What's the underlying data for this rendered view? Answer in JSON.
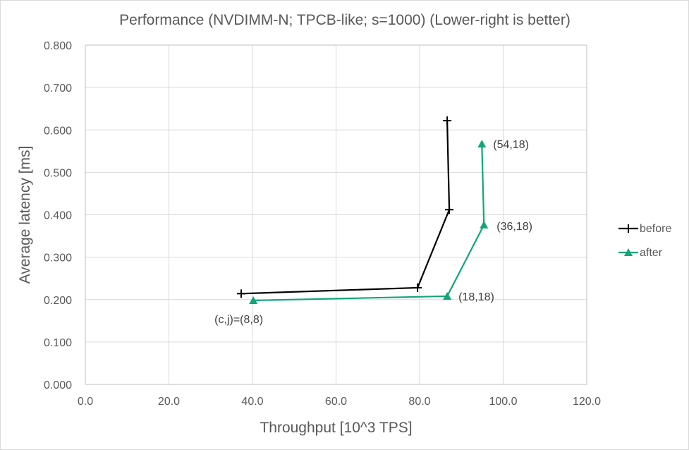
{
  "chart_data": {
    "type": "line",
    "title": "Performance (NVDIMM-N; TPCB-like; s=1000) (Lower-right is better)",
    "xlabel": "Throughput [10^3 TPS]",
    "ylabel": "Average latency [ms]",
    "xlim": [
      0,
      120
    ],
    "ylim": [
      0,
      0.8
    ],
    "xticks": [
      0,
      20,
      40,
      60,
      80,
      100,
      120
    ],
    "xtick_labels": [
      "0.0",
      "20.0",
      "40.0",
      "60.0",
      "80.0",
      "100.0",
      "120.0"
    ],
    "yticks": [
      0,
      0.1,
      0.2,
      0.3,
      0.4,
      0.5,
      0.6,
      0.7,
      0.8
    ],
    "ytick_labels": [
      "0.000",
      "0.100",
      "0.200",
      "0.300",
      "0.400",
      "0.500",
      "0.600",
      "0.700",
      "0.800"
    ],
    "grid": true,
    "legend_position": "right",
    "series": [
      {
        "name": "before",
        "color": "#000000",
        "marker": "plus",
        "x": [
          37.3,
          79.5,
          87.1,
          86.6
        ],
        "y": [
          0.214,
          0.228,
          0.412,
          0.622
        ]
      },
      {
        "name": "after",
        "color": "#12a57a",
        "marker": "triangle",
        "x": [
          40.2,
          86.6,
          95.4,
          94.9
        ],
        "y": [
          0.198,
          0.208,
          0.376,
          0.567
        ]
      }
    ],
    "annotations": [
      {
        "text": "(c,j)=(8,8)",
        "series": "after",
        "point": 0
      },
      {
        "text": "(18,18)",
        "series": "after",
        "point": 1
      },
      {
        "text": "(36,18)",
        "series": "after",
        "point": 2
      },
      {
        "text": "(54,18)",
        "series": "after",
        "point": 3
      }
    ]
  }
}
